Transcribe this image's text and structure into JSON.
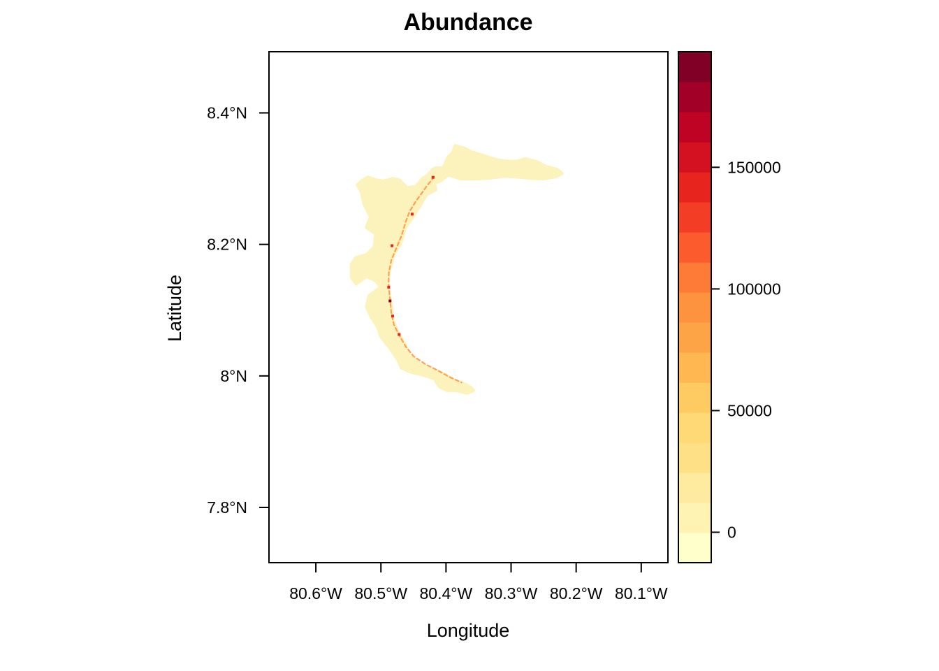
{
  "chart_data": {
    "type": "heatmap",
    "title": "Abundance",
    "xlabel": "Longitude",
    "ylabel": "Latitude",
    "x_ticks": [
      {
        "value": -80.6,
        "label": "80.6°W"
      },
      {
        "value": -80.5,
        "label": "80.5°W"
      },
      {
        "value": -80.4,
        "label": "80.4°W"
      },
      {
        "value": -80.3,
        "label": "80.3°W"
      },
      {
        "value": -80.2,
        "label": "80.2°W"
      },
      {
        "value": -80.1,
        "label": "80.1°W"
      }
    ],
    "y_ticks": [
      {
        "value": 7.8,
        "label": "7.8°N"
      },
      {
        "value": 8.0,
        "label": "8°N"
      },
      {
        "value": 8.2,
        "label": "8.2°N"
      },
      {
        "value": 8.4,
        "label": "8.4°N"
      }
    ],
    "xlim": [
      -80.672,
      -80.059
    ],
    "ylim": [
      7.716,
      8.493
    ],
    "grid": false,
    "legend_position": "right",
    "colorbar": {
      "range": [
        -12500,
        197500
      ],
      "ticks": [
        {
          "value": 0,
          "label": "0"
        },
        {
          "value": 50000,
          "label": "50000"
        },
        {
          "value": 100000,
          "label": "100000"
        },
        {
          "value": 150000,
          "label": "150000"
        }
      ],
      "colors": [
        "#FFFFCC",
        "#FFF3B4",
        "#FFEB9F",
        "#FEE087",
        "#FED976",
        "#FECB63",
        "#FEB751",
        "#FDA546",
        "#FD923F",
        "#FD7B37",
        "#FC5B2E",
        "#F43D25",
        "#E7241E",
        "#D31121",
        "#BF0325",
        "#A20026",
        "#800026"
      ]
    },
    "regions": [
      {
        "name": "outer",
        "level": "low",
        "color": "#FCF3BC",
        "polygon": [
          [
            -80.397,
            8.332
          ],
          [
            -80.389,
            8.34
          ],
          [
            -80.386,
            8.35
          ],
          [
            -80.372,
            8.346
          ],
          [
            -80.36,
            8.34
          ],
          [
            -80.346,
            8.336
          ],
          [
            -80.334,
            8.332
          ],
          [
            -80.32,
            8.328
          ],
          [
            -80.306,
            8.326
          ],
          [
            -80.292,
            8.326
          ],
          [
            -80.278,
            8.33
          ],
          [
            -80.262,
            8.326
          ],
          [
            -80.246,
            8.318
          ],
          [
            -80.23,
            8.314
          ],
          [
            -80.222,
            8.308
          ],
          [
            -80.232,
            8.303
          ],
          [
            -80.252,
            8.3
          ],
          [
            -80.272,
            8.301
          ],
          [
            -80.292,
            8.303
          ],
          [
            -80.312,
            8.304
          ],
          [
            -80.332,
            8.301
          ],
          [
            -80.354,
            8.3
          ],
          [
            -80.378,
            8.3
          ],
          [
            -80.396,
            8.306
          ],
          [
            -80.41,
            8.296
          ],
          [
            -80.418,
            8.294
          ],
          [
            -80.416,
            8.283
          ],
          [
            -80.43,
            8.276
          ],
          [
            -80.442,
            8.256
          ],
          [
            -80.452,
            8.24
          ],
          [
            -80.462,
            8.227
          ],
          [
            -80.47,
            8.202
          ],
          [
            -80.48,
            8.185
          ],
          [
            -80.486,
            8.164
          ],
          [
            -80.49,
            8.145
          ],
          [
            -80.488,
            8.126
          ],
          [
            -80.484,
            8.106
          ],
          [
            -80.482,
            8.085
          ],
          [
            -80.474,
            8.067
          ],
          [
            -80.464,
            8.049
          ],
          [
            -80.456,
            8.031
          ],
          [
            -80.44,
            8.018
          ],
          [
            -80.422,
            8.01
          ],
          [
            -80.402,
            8.002
          ],
          [
            -80.386,
            7.992
          ],
          [
            -80.37,
            7.987
          ],
          [
            -80.362,
            7.982
          ],
          [
            -80.358,
            7.978
          ],
          [
            -80.368,
            7.974
          ],
          [
            -80.384,
            7.978
          ],
          [
            -80.398,
            7.978
          ],
          [
            -80.41,
            7.984
          ],
          [
            -80.418,
            7.996
          ],
          [
            -80.436,
            8.002
          ],
          [
            -80.454,
            8.006
          ],
          [
            -80.468,
            8.012
          ],
          [
            -80.474,
            8.025
          ],
          [
            -80.486,
            8.042
          ],
          [
            -80.5,
            8.06
          ],
          [
            -80.505,
            8.075
          ],
          [
            -80.515,
            8.09
          ],
          [
            -80.522,
            8.105
          ],
          [
            -80.518,
            8.122
          ],
          [
            -80.5,
            8.135
          ],
          [
            -80.508,
            8.145
          ],
          [
            -80.522,
            8.152
          ],
          [
            -80.538,
            8.14
          ],
          [
            -80.545,
            8.15
          ],
          [
            -80.545,
            8.17
          ],
          [
            -80.538,
            8.18
          ],
          [
            -80.522,
            8.184
          ],
          [
            -80.51,
            8.196
          ],
          [
            -80.508,
            8.216
          ],
          [
            -80.522,
            8.226
          ],
          [
            -80.516,
            8.242
          ],
          [
            -80.526,
            8.262
          ],
          [
            -80.53,
            8.28
          ],
          [
            -80.536,
            8.29
          ],
          [
            -80.53,
            8.296
          ],
          [
            -80.52,
            8.302
          ],
          [
            -80.508,
            8.298
          ],
          [
            -80.496,
            8.296
          ],
          [
            -80.482,
            8.3
          ],
          [
            -80.472,
            8.298
          ],
          [
            -80.46,
            8.286
          ],
          [
            -80.446,
            8.288
          ],
          [
            -80.436,
            8.3
          ],
          [
            -80.428,
            8.305
          ],
          [
            -80.42,
            8.314
          ],
          [
            -80.416,
            8.316
          ],
          [
            -80.404,
            8.316
          ]
        ]
      },
      {
        "name": "rim",
        "level": "mid",
        "color": "#FD923F",
        "polyline": [
          [
            -80.418,
            8.303
          ],
          [
            -80.43,
            8.288
          ],
          [
            -80.446,
            8.266
          ],
          [
            -80.456,
            8.25
          ],
          [
            -80.462,
            8.234
          ],
          [
            -80.468,
            8.214
          ],
          [
            -80.476,
            8.195
          ],
          [
            -80.484,
            8.176
          ],
          [
            -80.488,
            8.156
          ],
          [
            -80.488,
            8.136
          ],
          [
            -80.486,
            8.116
          ],
          [
            -80.484,
            8.096
          ],
          [
            -80.48,
            8.078
          ],
          [
            -80.472,
            8.062
          ],
          [
            -80.462,
            8.045
          ],
          [
            -80.45,
            8.03
          ],
          [
            -80.432,
            8.018
          ],
          [
            -80.412,
            8.008
          ],
          [
            -80.394,
            7.998
          ],
          [
            -80.376,
            7.99
          ]
        ]
      },
      {
        "name": "hot-spots",
        "level": "high",
        "color": "#E7241E",
        "points": [
          [
            -80.483,
            8.198
          ],
          [
            -80.452,
            8.246
          ],
          [
            -80.42,
            8.302
          ],
          [
            -80.488,
            8.135
          ],
          [
            -80.482,
            8.091
          ],
          [
            -80.472,
            8.063
          ]
        ]
      },
      {
        "name": "peak",
        "level": "max",
        "color": "#800026",
        "points": [
          [
            -80.486,
            8.114
          ]
        ]
      }
    ]
  }
}
